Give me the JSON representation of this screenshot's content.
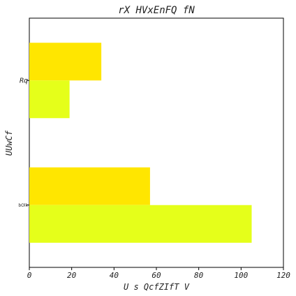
{
  "chart_data": {
    "type": "bar",
    "orientation": "horizontal",
    "title": "rX HVxEnFQ fN",
    "xlabel": "U s  QcfZIfT V",
    "ylabel": "UUwCf",
    "categories": [
      "Rq",
      "bOlk"
    ],
    "series": [
      {
        "color": "#ffe600",
        "values": [
          34,
          57
        ]
      },
      {
        "color": "#e5ff1a",
        "values": [
          19,
          105
        ]
      }
    ],
    "xlim": [
      0,
      120
    ],
    "xticks": [
      "0",
      "20",
      "40",
      "60",
      "80",
      "100",
      "120"
    ],
    "grid": false,
    "legend": "none"
  }
}
